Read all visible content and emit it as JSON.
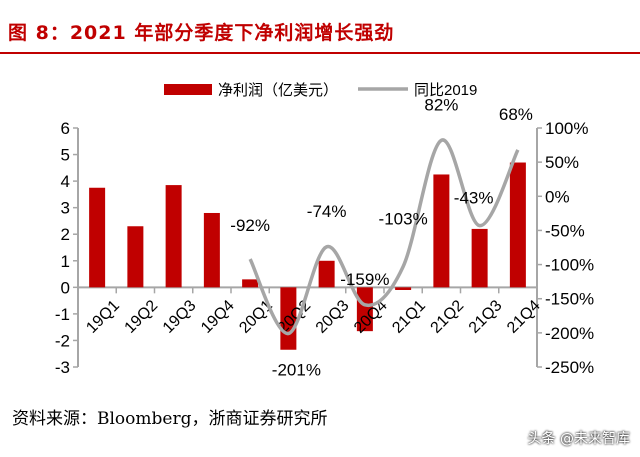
{
  "title": "图 8：2021 年部分季度下净利润增长强劲",
  "source": "资料来源：Bloomberg，浙商证券研究所",
  "watermark": "头条 @未来智库",
  "colors": {
    "bar": "#c00000",
    "line": "#a6a6a6",
    "title": "#c00000"
  },
  "chart_data": {
    "type": "bar+line",
    "categories": [
      "19Q1",
      "19Q2",
      "19Q3",
      "19Q4",
      "20Q1",
      "20Q2",
      "20Q3",
      "20Q4",
      "21Q1",
      "21Q2",
      "21Q3",
      "21Q4"
    ],
    "series": [
      {
        "name": "净利润（亿美元）",
        "type": "bar",
        "axis": "left",
        "values": [
          3.75,
          2.3,
          3.85,
          2.8,
          0.3,
          -2.35,
          1.0,
          -1.65,
          -0.1,
          4.25,
          2.2,
          4.7
        ]
      },
      {
        "name": "同比2019",
        "type": "line",
        "axis": "right",
        "values": [
          null,
          null,
          null,
          null,
          -92,
          -201,
          -74,
          -159,
          -103,
          82,
          -43,
          68
        ],
        "labels": [
          null,
          null,
          null,
          null,
          "-92%",
          "-201%",
          "-74%",
          "-159%",
          "-103%",
          "82%",
          "-43%",
          "68%"
        ]
      }
    ],
    "left_axis": {
      "range": [
        -3,
        6
      ],
      "ticks": [
        "6",
        "5",
        "4",
        "3",
        "2",
        "1",
        "0",
        "-1",
        "-2",
        "-3"
      ]
    },
    "right_axis": {
      "range": [
        -250,
        100
      ],
      "ticks": [
        "100%",
        "50%",
        "0%",
        "-50%",
        "-100%",
        "-150%",
        "-200%",
        "-250%"
      ]
    },
    "legend": "top",
    "grid": false
  }
}
